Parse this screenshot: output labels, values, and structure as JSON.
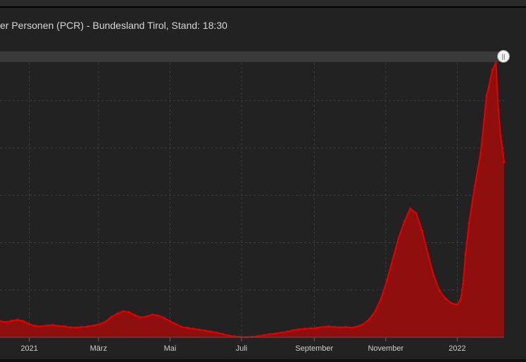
{
  "window": {
    "title": "er Personen (PCR) - Bundesland Tirol, Stand: 18:30"
  },
  "navigator": {
    "handle_glyph": "||"
  },
  "colors": {
    "background": "#222222",
    "series_line": "#e00000",
    "series_fill": "#8f0e0e",
    "grid": "#3c3c3c",
    "text": "#d6d6d6"
  },
  "chart_data": {
    "type": "area",
    "title": "er Personen (PCR) - Bundesland Tirol, Stand: 18:30",
    "xlabel": "",
    "ylabel": "",
    "x_unit": "days since 2021-01-01",
    "x_range": [
      -25,
      405
    ],
    "ylim": [
      0,
      5800
    ],
    "y_tick_values": [
      1000,
      2000,
      3000,
      4000,
      5000
    ],
    "grid": true,
    "legend": "none",
    "x_ticks": [
      {
        "label": "2021",
        "x": 0
      },
      {
        "label": "März",
        "x": 59
      },
      {
        "label": "Mai",
        "x": 120
      },
      {
        "label": "Juli",
        "x": 181
      },
      {
        "label": "September",
        "x": 243
      },
      {
        "label": "November",
        "x": 304
      },
      {
        "label": "2022",
        "x": 365
      }
    ],
    "series": [
      {
        "x": [
          -25,
          -20,
          -15,
          -10,
          -5,
          0,
          5,
          10,
          15,
          20,
          25,
          30,
          35,
          40,
          45,
          50,
          55,
          60,
          65,
          70,
          75,
          80,
          85,
          90,
          95,
          100,
          105,
          110,
          115,
          120,
          125,
          130,
          135,
          140,
          145,
          150,
          155,
          160,
          165,
          170,
          175,
          180,
          185,
          190,
          195,
          200,
          205,
          210,
          215,
          220,
          225,
          230,
          235,
          240,
          245,
          250,
          255,
          260,
          265,
          270,
          275,
          280,
          285,
          290,
          295,
          300,
          305,
          310,
          315,
          320,
          325,
          330,
          335,
          340,
          345,
          350,
          355,
          360,
          365,
          368,
          370,
          372,
          375,
          380,
          385,
          388,
          390,
          392,
          395,
          398,
          400,
          402,
          405
        ],
        "values": [
          340,
          320,
          350,
          370,
          340,
          280,
          240,
          230,
          250,
          260,
          240,
          230,
          210,
          205,
          215,
          230,
          250,
          280,
          330,
          430,
          500,
          550,
          530,
          470,
          420,
          440,
          480,
          460,
          410,
          340,
          280,
          220,
          200,
          180,
          160,
          140,
          120,
          100,
          70,
          40,
          20,
          10,
          5,
          10,
          25,
          45,
          65,
          80,
          100,
          120,
          150,
          170,
          180,
          190,
          200,
          215,
          230,
          220,
          210,
          215,
          205,
          230,
          280,
          380,
          550,
          820,
          1200,
          1650,
          2100,
          2450,
          2720,
          2620,
          2250,
          1750,
          1300,
          980,
          820,
          720,
          690,
          810,
          1120,
          1750,
          2400,
          3200,
          3900,
          4600,
          5100,
          5300,
          5650,
          5800,
          4800,
          4250,
          3700
        ]
      }
    ]
  }
}
